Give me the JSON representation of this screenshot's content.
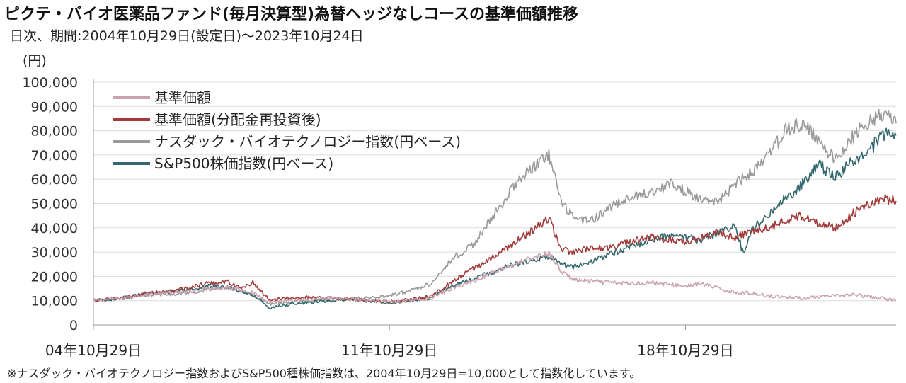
{
  "title": "ピクテ・バイオ医薬品ファンド(毎月決算型)為替ヘッジなしコースの基準価額推移",
  "subtitle": "日次、期間:2004年10月29日(設定日)〜2023年10月24日",
  "footnote": "※ナスダック・バイオテクノロジー指数およびS&P500種株価指数は、2004年10月29日=10,000として指数化しています。",
  "chart_data": {
    "type": "line",
    "y_unit": "(円)",
    "ylim": [
      0,
      100000
    ],
    "yticks": [
      0,
      10000,
      20000,
      30000,
      40000,
      50000,
      60000,
      70000,
      80000,
      90000,
      100000
    ],
    "ytick_labels": [
      "0",
      "10,000",
      "20,000",
      "30,000",
      "40,000",
      "50,000",
      "60,000",
      "70,000",
      "80,000",
      "90,000",
      "100,000"
    ],
    "xlim": [
      2004.83,
      2023.81
    ],
    "xticks": [
      2004.83,
      2011.83,
      2018.83
    ],
    "xtick_labels": [
      "04年10月29日",
      "11年10月29日",
      "18年10月29日"
    ],
    "grid": "horizontal",
    "legend_position": "top-left",
    "series": [
      {
        "name": "基準価額",
        "color": "#c9a2ae",
        "x": [
          2004.83,
          2005.5,
          2006.0,
          2006.5,
          2007.0,
          2007.5,
          2008.0,
          2008.5,
          2009.0,
          2009.5,
          2010.0,
          2010.5,
          2011.0,
          2011.5,
          2011.83,
          2012.3,
          2012.8,
          2013.3,
          2013.8,
          2014.3,
          2014.8,
          2015.3,
          2015.6,
          2015.9,
          2016.2,
          2016.6,
          2017.0,
          2017.5,
          2018.0,
          2018.5,
          2018.83,
          2019.2,
          2019.6,
          2020.0,
          2020.4,
          2020.8,
          2021.2,
          2021.6,
          2022.0,
          2022.4,
          2022.8,
          2023.2,
          2023.5,
          2023.81
        ],
        "y": [
          10000,
          11000,
          12500,
          13000,
          13500,
          15000,
          15500,
          14000,
          9500,
          10000,
          10500,
          11000,
          10500,
          10000,
          9500,
          10000,
          11000,
          15000,
          18000,
          22000,
          25000,
          28000,
          29500,
          22000,
          18500,
          18000,
          17500,
          17000,
          17500,
          16500,
          16000,
          17000,
          15000,
          13500,
          13000,
          12000,
          11500,
          11000,
          11500,
          12000,
          12500,
          11500,
          11000,
          10000
        ]
      },
      {
        "name": "基準価額(分配金再投資後)",
        "color": "#a33a3a",
        "x": [
          2004.83,
          2005.5,
          2006.0,
          2006.5,
          2007.0,
          2007.5,
          2008.0,
          2008.3,
          2008.6,
          2008.8,
          2009.0,
          2009.5,
          2010.0,
          2010.5,
          2011.0,
          2011.5,
          2011.83,
          2012.3,
          2012.8,
          2013.3,
          2013.8,
          2014.3,
          2014.8,
          2015.3,
          2015.6,
          2015.9,
          2016.2,
          2016.6,
          2017.0,
          2017.5,
          2018.0,
          2018.5,
          2018.83,
          2019.2,
          2019.6,
          2020.0,
          2020.4,
          2020.8,
          2021.2,
          2021.6,
          2022.0,
          2022.4,
          2022.8,
          2023.2,
          2023.5,
          2023.81
        ],
        "y": [
          10000,
          11000,
          13000,
          13500,
          15000,
          17000,
          18000,
          15000,
          17500,
          13500,
          10500,
          11000,
          11500,
          11000,
          10500,
          10000,
          9500,
          10500,
          12000,
          17500,
          23000,
          28000,
          34000,
          40000,
          44000,
          31000,
          30000,
          31500,
          32000,
          34000,
          36000,
          35000,
          34500,
          36000,
          38000,
          36000,
          39000,
          40000,
          43000,
          45000,
          42000,
          40000,
          46000,
          50000,
          52000,
          51000
        ]
      },
      {
        "name": "ナスダック・バイオテクノロジー指数(円ベース)",
        "color": "#9a9a9a",
        "x": [
          2004.83,
          2005.5,
          2006.0,
          2006.5,
          2007.0,
          2007.5,
          2008.0,
          2008.5,
          2009.0,
          2009.5,
          2010.0,
          2010.5,
          2011.0,
          2011.5,
          2011.83,
          2012.3,
          2012.8,
          2013.3,
          2013.8,
          2014.3,
          2014.8,
          2015.3,
          2015.6,
          2015.9,
          2016.2,
          2016.6,
          2017.0,
          2017.5,
          2018.0,
          2018.5,
          2018.83,
          2019.2,
          2019.6,
          2020.0,
          2020.4,
          2020.8,
          2021.2,
          2021.6,
          2022.0,
          2022.4,
          2022.8,
          2023.2,
          2023.5,
          2023.81
        ],
        "y": [
          10000,
          11000,
          12500,
          12500,
          13000,
          14500,
          15500,
          13000,
          8500,
          9500,
          10000,
          10500,
          11000,
          11500,
          12000,
          14000,
          17000,
          27000,
          33000,
          45000,
          58000,
          66000,
          70000,
          50000,
          44000,
          43000,
          48000,
          52000,
          55000,
          58000,
          55000,
          52000,
          50000,
          58000,
          63000,
          70000,
          80000,
          83000,
          75000,
          68000,
          78000,
          84000,
          87000,
          83000
        ]
      },
      {
        "name": "S&P500株価指数(円ベース)",
        "color": "#33696e",
        "x": [
          2004.83,
          2005.5,
          2006.0,
          2006.5,
          2007.0,
          2007.5,
          2008.0,
          2008.5,
          2008.8,
          2009.0,
          2009.5,
          2010.0,
          2010.5,
          2011.0,
          2011.5,
          2011.83,
          2012.3,
          2012.8,
          2013.3,
          2013.8,
          2014.3,
          2014.8,
          2015.3,
          2015.6,
          2015.9,
          2016.2,
          2016.6,
          2017.0,
          2017.5,
          2018.0,
          2018.5,
          2018.83,
          2019.2,
          2019.6,
          2020.0,
          2020.2,
          2020.4,
          2020.8,
          2021.2,
          2021.6,
          2022.0,
          2022.4,
          2022.8,
          2023.2,
          2023.5,
          2023.81
        ],
        "y": [
          10000,
          11000,
          12500,
          13500,
          14500,
          16000,
          15500,
          13000,
          10000,
          7000,
          8500,
          9500,
          10000,
          10500,
          9500,
          9000,
          10000,
          11000,
          16000,
          19000,
          22000,
          25000,
          27000,
          28000,
          25000,
          24000,
          26000,
          29000,
          32000,
          35000,
          37000,
          36000,
          35000,
          38000,
          41000,
          29000,
          40000,
          45000,
          52000,
          58000,
          66000,
          61000,
          68000,
          72000,
          79000,
          78000
        ]
      }
    ]
  }
}
